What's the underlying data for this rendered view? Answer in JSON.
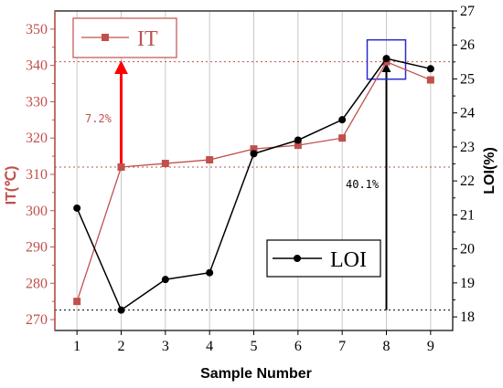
{
  "chart_data": {
    "type": "line",
    "x": [
      1,
      2,
      3,
      4,
      5,
      6,
      7,
      8,
      9
    ],
    "xlabel": "Sample Number",
    "xlim": [
      0.5,
      9.5
    ],
    "xticks": [
      "1",
      "2",
      "3",
      "4",
      "5",
      "6",
      "7",
      "8",
      "9"
    ],
    "grid": "vertical",
    "series": [
      {
        "name": "IT",
        "axis": "left",
        "color": "#c0504d",
        "marker": "square",
        "values": [
          275,
          312,
          313,
          314,
          317,
          318,
          320,
          341,
          336
        ]
      },
      {
        "name": "LOI",
        "axis": "right",
        "color": "#000000",
        "marker": "circle",
        "values": [
          21.2,
          18.2,
          19.1,
          19.3,
          22.8,
          23.2,
          23.8,
          25.6,
          25.3
        ]
      }
    ],
    "ylabel_left": "IT(℃)",
    "ylim_left": [
      267,
      355
    ],
    "yticks_left": [
      "270",
      "280",
      "290",
      "300",
      "310",
      "320",
      "330",
      "340",
      "350"
    ],
    "ylabel_right": "LOI(%)",
    "ylim_right": [
      17.6,
      27
    ],
    "yticks_right": [
      "18",
      "19",
      "20",
      "21",
      "22",
      "23",
      "24",
      "25",
      "26",
      "27"
    ],
    "annotations": [
      {
        "text": "7.2%",
        "color": "#c0504d"
      },
      {
        "text": "40.1%",
        "color": "#000000"
      }
    ],
    "legend": [
      {
        "name": "IT",
        "placement": "top-left"
      },
      {
        "name": "LOI",
        "placement": "bottom-right"
      }
    ]
  }
}
